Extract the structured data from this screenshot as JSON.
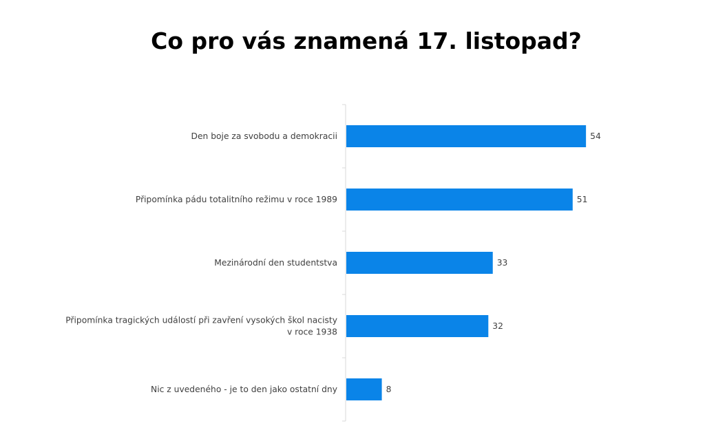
{
  "chart_data": {
    "type": "bar",
    "orientation": "horizontal",
    "title": "Co pro vás znamená 17. listopad?",
    "categories": [
      "Den boje za svobodu a demokracii",
      "Připomínka pádu totalitního režimu v roce 1989",
      "Mezinárodní den studentstva",
      "Připomínka tragických událostí při zavření vysokých škol nacisty v roce 1938",
      "Nic z uvedeného - je to den jako ostatní dny"
    ],
    "category_lines": [
      [
        "Den boje za svobodu a demokracii"
      ],
      [
        "Připomínka pádu totalitního režimu v roce 1989"
      ],
      [
        "Mezinárodní den studentstva"
      ],
      [
        "Připomínka tragických událostí při zavření vysokých škol nacisty",
        "v roce 1938"
      ],
      [
        "Nic z uvedeného - je to den jako ostatní dny"
      ]
    ],
    "values": [
      54,
      51,
      33,
      32,
      8
    ],
    "bar_color": "#0a84e8",
    "xlim": [
      0,
      60
    ],
    "grid": false,
    "legend": "none",
    "data_labels": true
  }
}
